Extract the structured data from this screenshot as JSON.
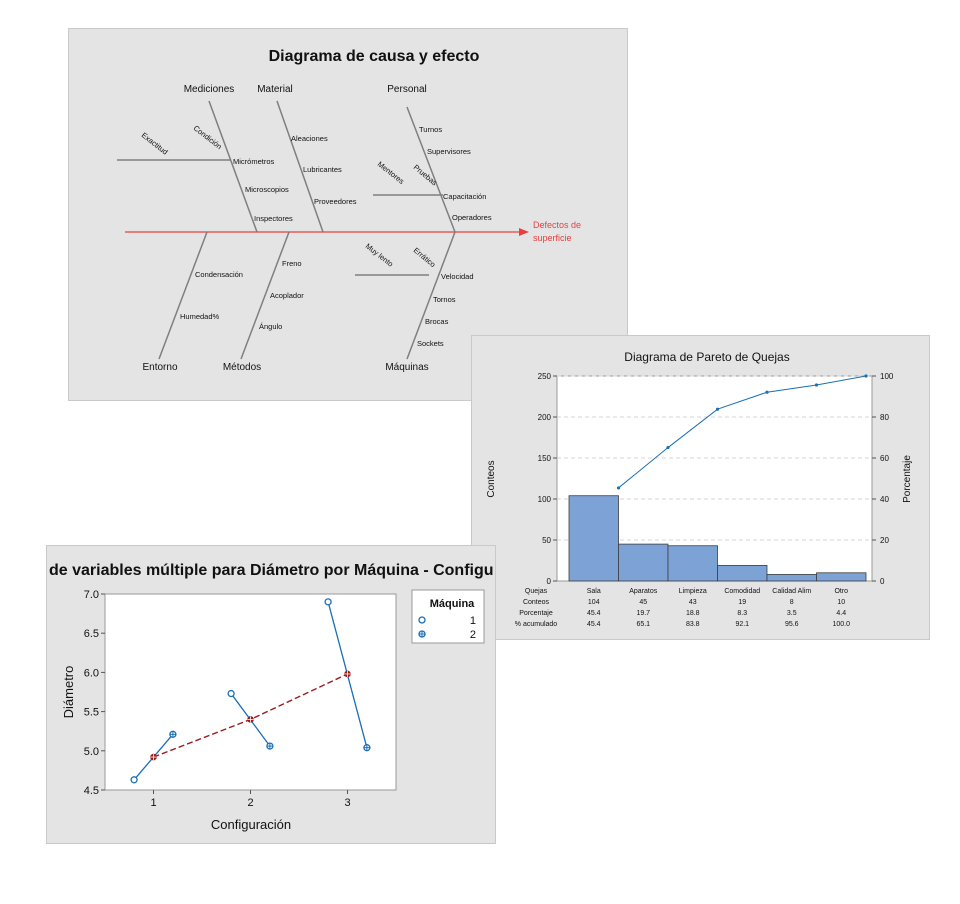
{
  "colors": {
    "panel_bg": "#e4e4e4",
    "bone": "#7f7f7f",
    "spine": "#e8403f",
    "effect_text": "#e8403f",
    "bar_fill": "#7da2d6",
    "bar_stroke": "#3d3d3d",
    "cum_line": "#1a6fb5",
    "multivari_line": "#1a6fb5",
    "mean_line": "#9b1c1c",
    "mean_marker": "#9b1c1c"
  },
  "chart_data": [
    {
      "type": "fishbone",
      "title": "Diagrama de causa y efecto",
      "effect": [
        "Defectos de",
        "superficie"
      ],
      "categories": {
        "mediciones": {
          "label": "Mediciones",
          "causes": [
            "Micrómetros",
            "Microscopios",
            "Inspectores"
          ],
          "sub_bones": [
            {
              "label": "Exactitud"
            },
            {
              "label": "Condición"
            }
          ]
        },
        "material": {
          "label": "Material",
          "causes": [
            "Aleaciones",
            "Lubricantes",
            "Proveedores"
          ]
        },
        "personal": {
          "label": "Personal",
          "causes": [
            "Turnos",
            "Supervisores",
            "Capacitación",
            "Operadores"
          ],
          "sub_bones": [
            {
              "label": "Mentores"
            },
            {
              "label": "Pruebas"
            }
          ]
        },
        "entorno": {
          "label": "Entorno",
          "causes": [
            "Condensación",
            "Humedad%"
          ]
        },
        "metodos": {
          "label": "Métodos",
          "causes": [
            "Freno",
            "Acoplador",
            "Ángulo"
          ]
        },
        "maquinas": {
          "label": "Máquinas",
          "causes": [
            "Velocidad",
            "Tornos",
            "Brocas",
            "Sockets"
          ],
          "sub_bones": [
            {
              "label": "Muy lento"
            },
            {
              "label": "Errático"
            }
          ]
        }
      }
    },
    {
      "type": "bar",
      "title": "Diagrama de Pareto de Quejas",
      "xlabel": "Quejas",
      "ylabel": "Conteos",
      "ylabel_right": "Porcentaje",
      "ylim": [
        0,
        250
      ],
      "ylim_right": [
        0,
        100
      ],
      "yticks": [
        0,
        50,
        100,
        150,
        200,
        250
      ],
      "yticks_right": [
        0,
        20,
        40,
        60,
        80,
        100
      ],
      "categories": [
        "Sala",
        "Aparatos",
        "Limpieza",
        "Comodidad",
        "Calidad Alim",
        "Otro"
      ],
      "series": [
        {
          "name": "Conteos",
          "values": [
            104,
            45,
            43,
            19,
            8,
            10
          ]
        },
        {
          "name": "% acumulado",
          "values": [
            45.4,
            65.1,
            83.8,
            92.1,
            95.6,
            100.0
          ]
        }
      ],
      "table": {
        "header": "Quejas",
        "rows": [
          {
            "label": "Conteos",
            "values": [
              "104",
              "45",
              "43",
              "19",
              "8",
              "10"
            ]
          },
          {
            "label": "Porcentaje",
            "values": [
              "45.4",
              "19.7",
              "18.8",
              "8.3",
              "3.5",
              "4.4"
            ]
          },
          {
            "label": "% acumulado",
            "values": [
              "45.4",
              "65.1",
              "83.8",
              "92.1",
              "95.6",
              "100.0"
            ]
          }
        ]
      },
      "grid": true
    },
    {
      "type": "line",
      "title": "de variables múltiple para Diámetro por Máquina - Configu",
      "xlabel": "Configuración",
      "ylabel": "Diámetro",
      "xlim": [
        0.5,
        3.5
      ],
      "ylim": [
        4.5,
        7.0
      ],
      "xticks": [
        "1",
        "2",
        "3"
      ],
      "yticks": [
        "4.5",
        "5.0",
        "5.5",
        "6.0",
        "6.5",
        "7.0"
      ],
      "legend": {
        "title": "Máquina",
        "placement": "right",
        "entries": [
          "1",
          "2"
        ]
      },
      "x": [
        1,
        2,
        3
      ],
      "series": [
        {
          "name": "1",
          "values": [
            4.63,
            5.73,
            6.9
          ]
        },
        {
          "name": "2",
          "values": [
            5.21,
            5.06,
            5.04
          ]
        }
      ],
      "means": [
        4.92,
        5.4,
        5.98
      ]
    }
  ]
}
